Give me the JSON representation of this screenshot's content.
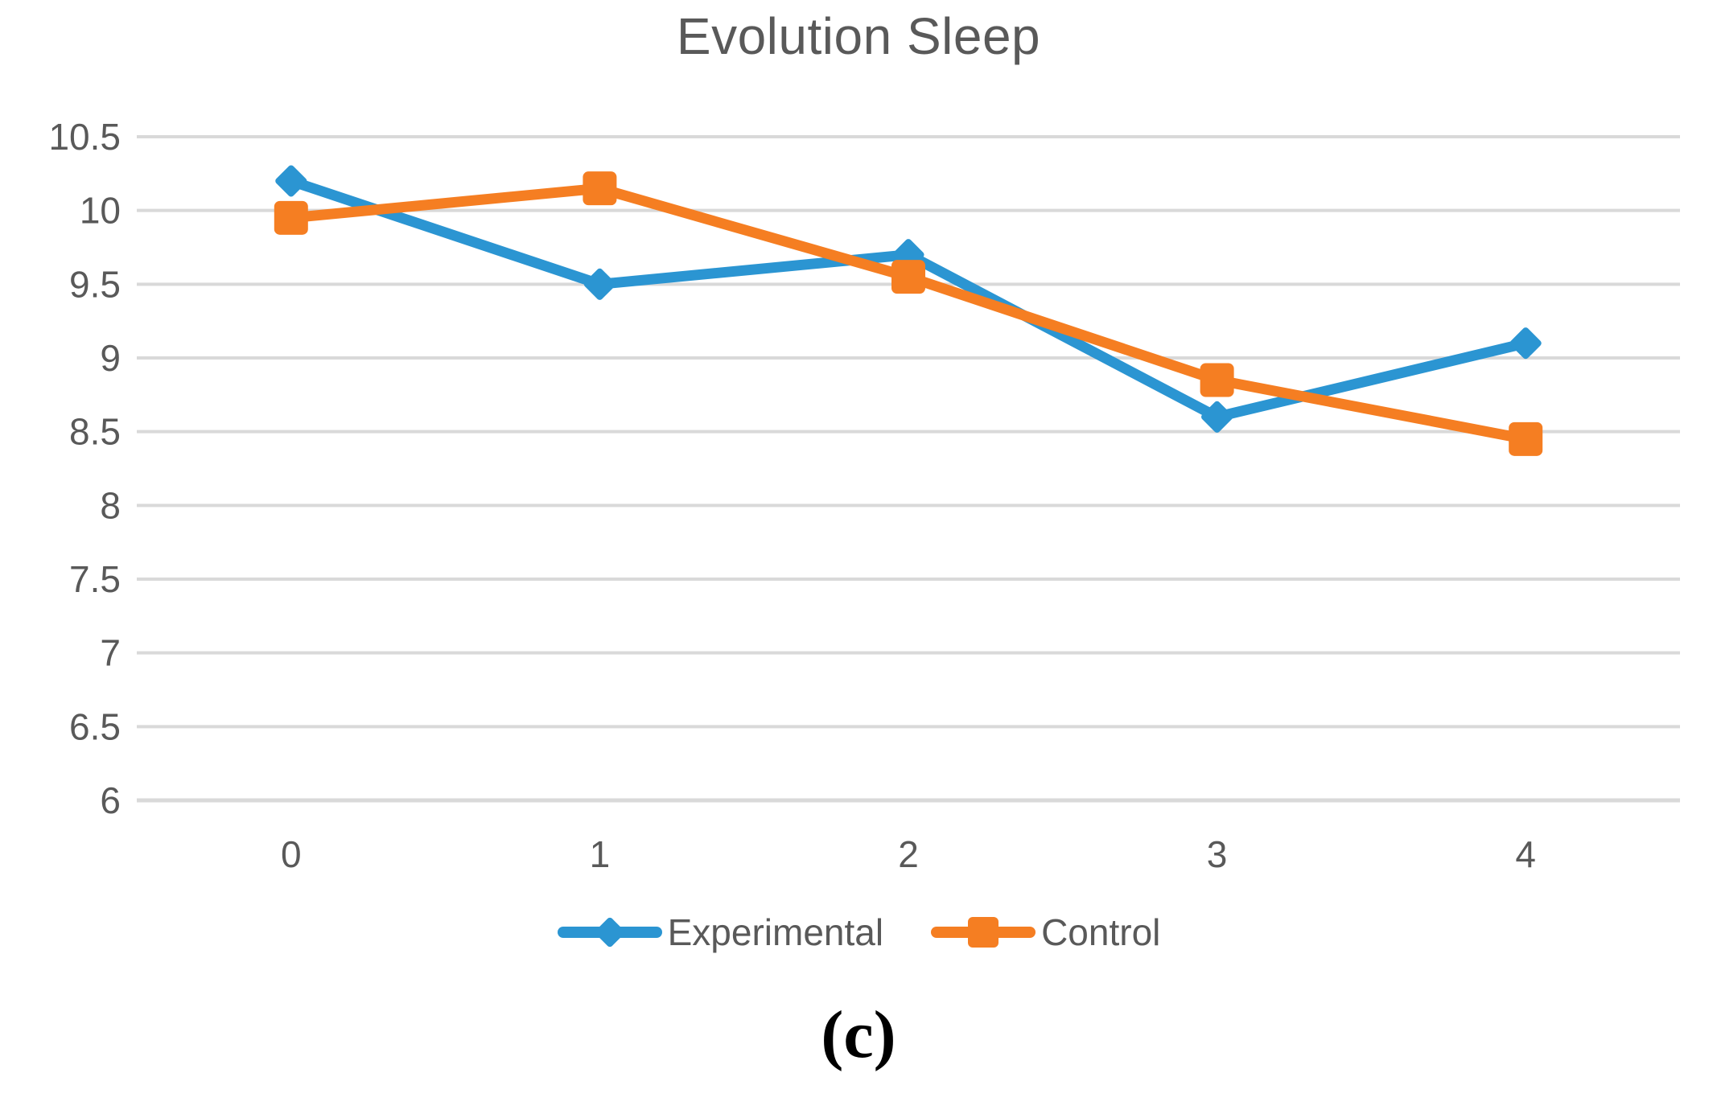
{
  "title": "Evolution Sleep",
  "caption": "(c)",
  "colors": {
    "experimental": "#2B95D2",
    "control": "#F57E22",
    "text_gray": "#595959",
    "gridline": "#D9D9D9",
    "caption_black": "#000000"
  },
  "legend": {
    "items": [
      {
        "label": "Experimental",
        "icon": "line-with-diamond-icon"
      },
      {
        "label": "Control",
        "icon": "line-with-square-icon"
      }
    ],
    "position": "bottom-center"
  },
  "chart_data": {
    "type": "line",
    "title": "Evolution Sleep",
    "categories": [
      "0",
      "1",
      "2",
      "3",
      "4"
    ],
    "series": [
      {
        "name": "Experimental",
        "color": "#2B95D2",
        "marker": "diamond",
        "values": [
          10.2,
          9.5,
          9.7,
          8.6,
          9.1
        ]
      },
      {
        "name": "Control",
        "color": "#F57E22",
        "marker": "square",
        "values": [
          9.95,
          10.15,
          9.55,
          8.85,
          8.45
        ]
      }
    ],
    "xlabel": "",
    "ylabel": "",
    "ylim": [
      6,
      10.5
    ],
    "yticks": [
      6,
      6.5,
      7,
      7.5,
      8,
      8.5,
      9,
      9.5,
      10,
      10.5
    ],
    "ytick_labels": [
      "6",
      "6.5",
      "7",
      "7.5",
      "8",
      "8.5",
      "9",
      "9.5",
      "10",
      "10.5"
    ],
    "grid": "horizontal",
    "legend_position": "bottom"
  }
}
